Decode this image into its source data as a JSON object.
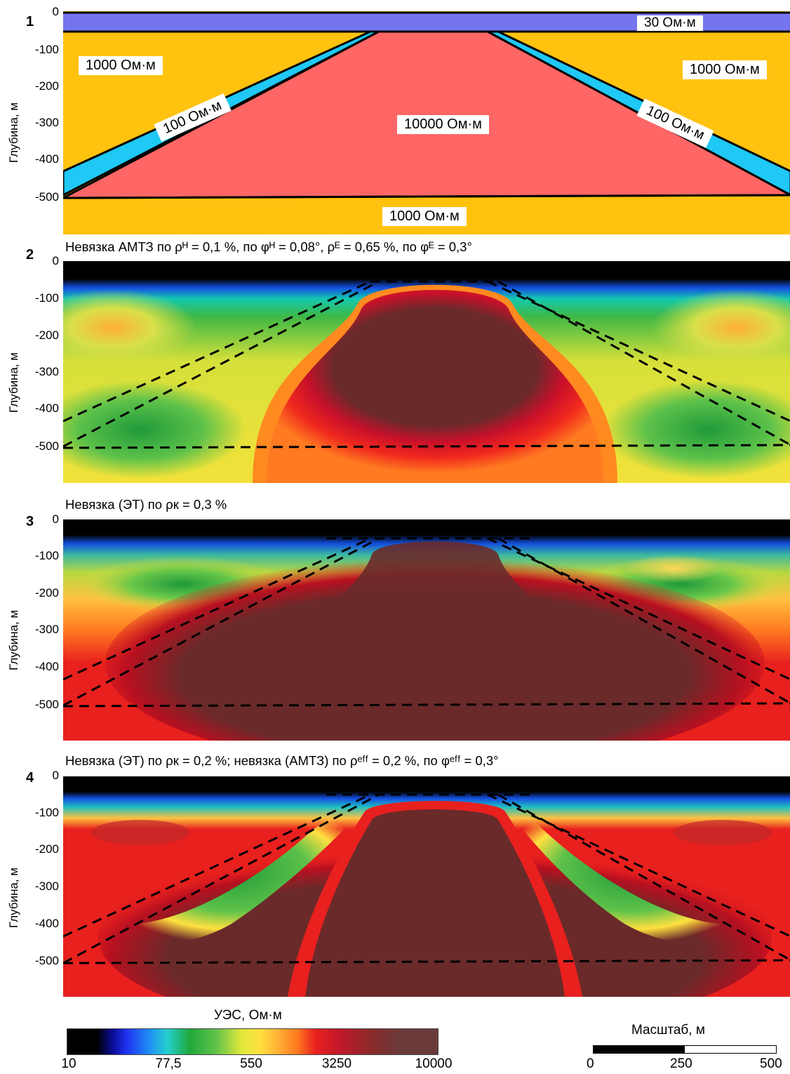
{
  "panels": [
    {
      "number": "1",
      "caption": "",
      "ylabel": "Глубина, м",
      "ticks": [
        "0",
        "-100",
        "-200",
        "-300",
        "-400",
        "-500"
      ]
    },
    {
      "number": "2",
      "caption": "Невязка АМТЗ по ρᴴ = 0,1 %, по φᴴ = 0,08°, ρᴱ = 0,65 %, по φᴱ = 0,3°",
      "ylabel": "Глубина, м",
      "ticks": [
        "0",
        "-100",
        "-200",
        "-300",
        "-400",
        "-500"
      ]
    },
    {
      "number": "3",
      "caption": "Невязка (ЭТ) по ρк = 0,3 %",
      "ylabel": "Глубина, м",
      "ticks": [
        "0",
        "-100",
        "-200",
        "-300",
        "-400",
        "-500"
      ]
    },
    {
      "number": "4",
      "caption": "Невязка (ЭТ) по ρк = 0,2 %; невязка (АМТЗ) по ρᵉᶠᶠ = 0,2 %, по φᵉᶠᶠ = 0,3°",
      "ylabel": "Глубина, м",
      "ticks": [
        "0",
        "-100",
        "-200",
        "-300",
        "-400",
        "-500"
      ]
    }
  ],
  "model_labels": {
    "top_layer": "30 Ом·м",
    "host_left": "1000 Ом·м",
    "host_right": "1000 Ом·м",
    "dyke_left": "100 Ом·м",
    "dyke_right": "100 Ом·м",
    "body": "10000 Ом·м",
    "base": "1000 Ом·м"
  },
  "colorbar": {
    "title": "УЭС, Ом·м",
    "ticks": [
      "10",
      "77,5",
      "550",
      "3250",
      "10000"
    ]
  },
  "scalebar": {
    "title": "Масштаб, м",
    "ticks": [
      "0",
      "250",
      "500"
    ]
  },
  "colors": {
    "top_layer": "#7575f0",
    "host": "#ffc20e",
    "dyke": "#1fc8f5",
    "body": "#ff6666"
  }
}
